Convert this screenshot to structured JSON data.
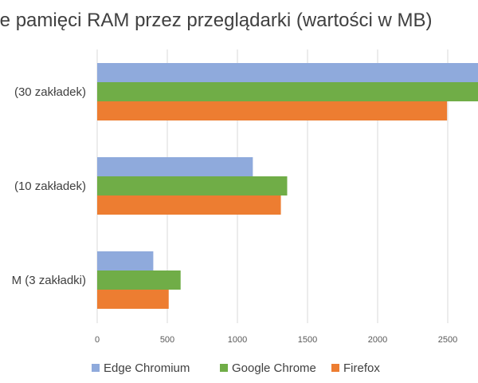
{
  "chart_data": {
    "type": "bar",
    "orientation": "horizontal",
    "title": "użycie pamięci RAM przez przeglądarki (wartości w MB)",
    "categories": [
      "(30 zakładek)",
      "(10 zakładek)",
      "M (3 zakładki)"
    ],
    "series": [
      {
        "name": "Edge Chromium",
        "color": "#8faadc",
        "values": [
          2750,
          1110,
          400
        ]
      },
      {
        "name": "Google Chrome",
        "color": "#70ad47",
        "values": [
          2750,
          1355,
          595
        ]
      },
      {
        "name": "Firefox",
        "color": "#ed7d31",
        "values": [
          2495,
          1310,
          510
        ]
      }
    ],
    "x_ticks": [
      "0",
      "500",
      "1000",
      "1500",
      "2000",
      "2500"
    ],
    "xlim": [
      0,
      3000
    ],
    "grid": "vertical",
    "legend_position": "bottom"
  }
}
